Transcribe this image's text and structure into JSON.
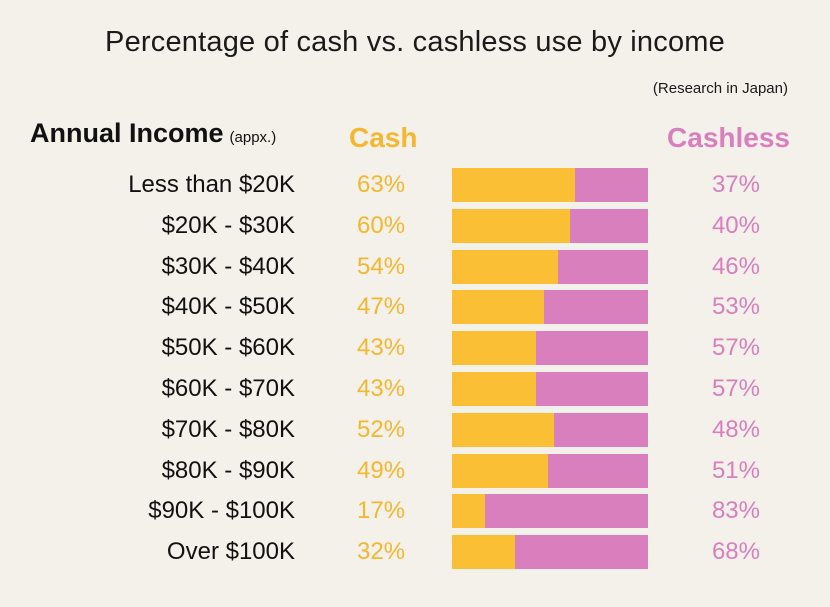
{
  "title": "Percentage of cash vs. cashless use by income",
  "source_note": "(Research in Japan)",
  "headers": {
    "income": "Annual Income",
    "income_sub": "(appx.)",
    "cash": "Cash",
    "cashless": "Cashless"
  },
  "colors": {
    "cash": "#fbbf35",
    "cashless": "#d97fbe",
    "background": "#f4f1ea"
  },
  "chart_data": {
    "type": "bar",
    "stacked": true,
    "orientation": "horizontal",
    "title": "Percentage of cash vs. cashless use by income",
    "subtitle": "(Research in Japan)",
    "categories": [
      "Less than $20K",
      "$20K - $30K",
      "$30K - $40K",
      "$40K - $50K",
      "$50K - $60K",
      "$60K - $70K",
      "$70K - $80K",
      "$80K - $90K",
      "$90K - $100K",
      "Over $100K"
    ],
    "series": [
      {
        "name": "Cash",
        "values": [
          63,
          60,
          54,
          47,
          43,
          43,
          52,
          49,
          17,
          32
        ]
      },
      {
        "name": "Cashless",
        "values": [
          37,
          40,
          46,
          53,
          57,
          57,
          48,
          51,
          83,
          68
        ]
      }
    ],
    "value_labels": {
      "cash": [
        "63%",
        "60%",
        "54%",
        "47%",
        "43%",
        "43%",
        "52%",
        "49%",
        "17%",
        "32%"
      ],
      "cashless": [
        "37%",
        "40%",
        "46%",
        "53%",
        "57%",
        "57%",
        "48%",
        "51%",
        "83%",
        "68%"
      ]
    }
  }
}
